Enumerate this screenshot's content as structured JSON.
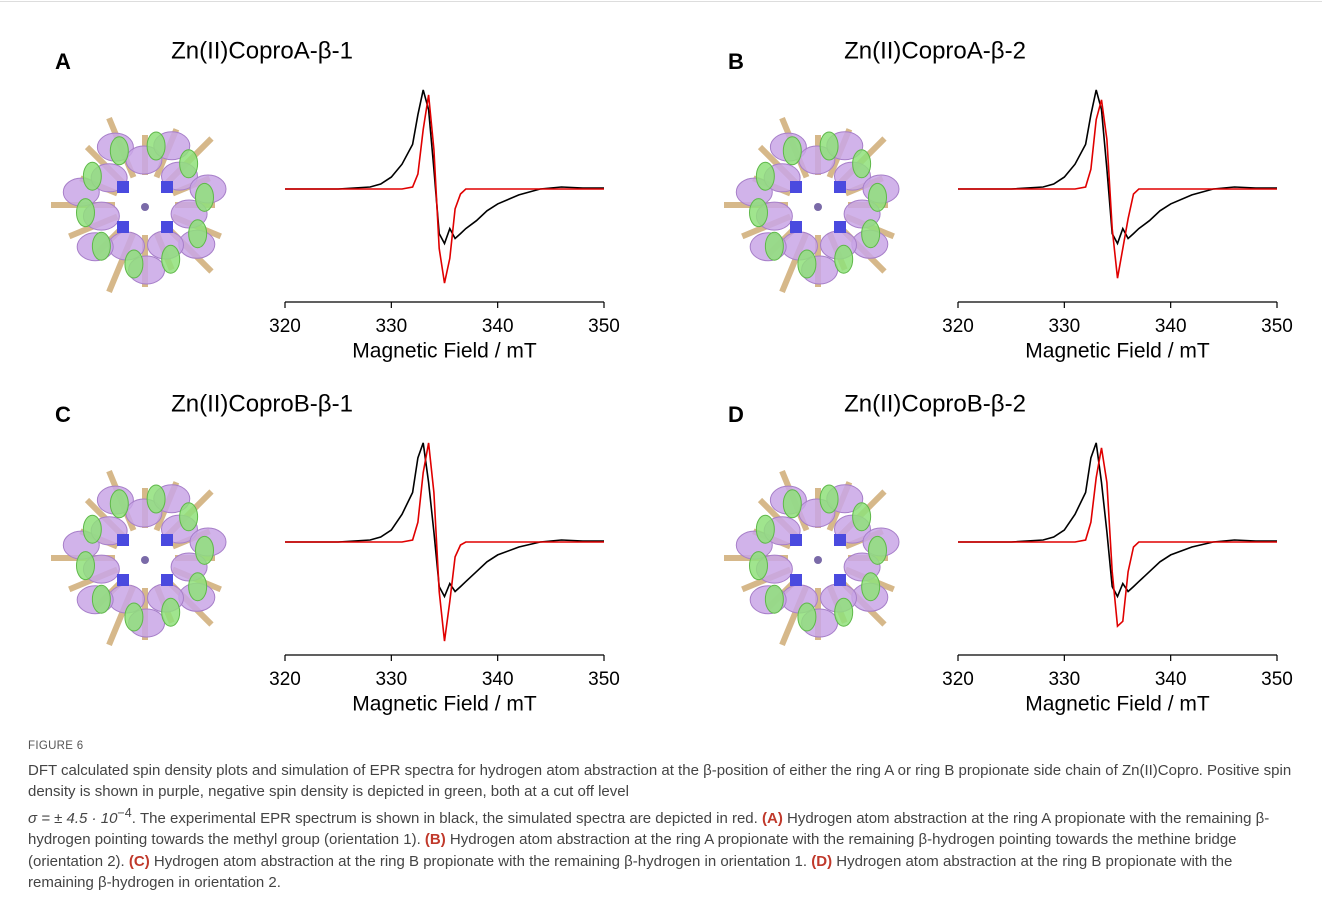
{
  "chart_data": [
    {
      "type": "line",
      "label": "A",
      "title": "Zn(II)CoproA-β-1",
      "xlabel": "Magnetic Field / mT",
      "xlim": [
        320,
        350
      ],
      "xticks": [
        320,
        330,
        340,
        350
      ],
      "ylim": [
        -1.1,
        1.1
      ],
      "x": [
        320,
        325,
        328,
        329,
        330,
        331,
        332,
        332.5,
        333,
        333.5,
        334,
        334.5,
        335,
        335.5,
        336,
        336.5,
        337,
        338,
        339,
        340,
        342,
        344,
        346,
        348,
        350
      ],
      "series": [
        {
          "color": "#000000",
          "values": [
            0,
            0,
            0.02,
            0.05,
            0.12,
            0.25,
            0.45,
            0.75,
            1.0,
            0.8,
            0.2,
            -0.45,
            -0.55,
            -0.4,
            -0.5,
            -0.45,
            -0.4,
            -0.32,
            -0.22,
            -0.15,
            -0.06,
            0.0,
            0.02,
            0.01,
            0.01
          ]
        },
        {
          "color": "#e00000",
          "values": [
            0,
            0,
            0,
            0,
            0,
            0,
            0.02,
            0.15,
            0.6,
            0.95,
            0.4,
            -0.6,
            -0.95,
            -0.7,
            -0.2,
            -0.05,
            0,
            0,
            0,
            0,
            0,
            0,
            0,
            0,
            0
          ]
        }
      ]
    },
    {
      "type": "line",
      "label": "B",
      "title": "Zn(II)CoproA-β-2",
      "xlabel": "Magnetic Field / mT",
      "xlim": [
        320,
        350
      ],
      "xticks": [
        320,
        330,
        340,
        350
      ],
      "ylim": [
        -1.1,
        1.1
      ],
      "x": [
        320,
        325,
        328,
        329,
        330,
        331,
        332,
        332.5,
        333,
        333.5,
        334,
        334.5,
        335,
        335.5,
        336,
        336.5,
        337,
        338,
        339,
        340,
        342,
        344,
        346,
        348,
        350
      ],
      "series": [
        {
          "color": "#000000",
          "values": [
            0,
            0,
            0.02,
            0.05,
            0.12,
            0.25,
            0.45,
            0.75,
            1.0,
            0.8,
            0.2,
            -0.45,
            -0.55,
            -0.4,
            -0.5,
            -0.45,
            -0.4,
            -0.32,
            -0.22,
            -0.15,
            -0.06,
            0.0,
            0.02,
            0.01,
            0.01
          ]
        },
        {
          "color": "#e00000",
          "values": [
            0,
            0,
            0,
            0,
            0,
            0,
            0.02,
            0.2,
            0.7,
            0.9,
            0.5,
            -0.4,
            -0.9,
            -0.6,
            -0.3,
            -0.05,
            0,
            0,
            0,
            0,
            0,
            0,
            0,
            0,
            0
          ]
        }
      ]
    },
    {
      "type": "line",
      "label": "C",
      "title": "Zn(II)CoproB-β-1",
      "xlabel": "Magnetic Field / mT",
      "xlim": [
        320,
        350
      ],
      "xticks": [
        320,
        330,
        340,
        350
      ],
      "ylim": [
        -1.1,
        1.1
      ],
      "x": [
        320,
        325,
        328,
        329,
        330,
        331,
        332,
        332.5,
        333,
        333.5,
        334,
        334.5,
        335,
        335.5,
        336,
        336.5,
        337,
        338,
        339,
        340,
        342,
        344,
        346,
        348,
        350
      ],
      "series": [
        {
          "color": "#000000",
          "values": [
            0,
            0,
            0.02,
            0.05,
            0.12,
            0.28,
            0.5,
            0.85,
            1.0,
            0.6,
            0.1,
            -0.45,
            -0.55,
            -0.42,
            -0.5,
            -0.45,
            -0.4,
            -0.3,
            -0.2,
            -0.13,
            -0.05,
            0.0,
            0.02,
            0.01,
            0.01
          ]
        },
        {
          "color": "#e00000",
          "values": [
            0,
            0,
            0,
            0,
            0,
            0,
            0.02,
            0.2,
            0.7,
            1.0,
            0.5,
            -0.5,
            -1.0,
            -0.6,
            -0.15,
            -0.03,
            0,
            0,
            0,
            0,
            0,
            0,
            0,
            0,
            0
          ]
        }
      ]
    },
    {
      "type": "line",
      "label": "D",
      "title": "Zn(II)CoproB-β-2",
      "xlabel": "Magnetic Field / mT",
      "xlim": [
        320,
        350
      ],
      "xticks": [
        320,
        330,
        340,
        350
      ],
      "ylim": [
        -1.1,
        1.1
      ],
      "x": [
        320,
        325,
        328,
        329,
        330,
        331,
        332,
        332.5,
        333,
        333.5,
        334,
        334.5,
        335,
        335.5,
        336,
        336.5,
        337,
        338,
        339,
        340,
        342,
        344,
        346,
        348,
        350
      ],
      "series": [
        {
          "color": "#000000",
          "values": [
            0,
            0,
            0.02,
            0.05,
            0.12,
            0.28,
            0.5,
            0.85,
            1.0,
            0.6,
            0.1,
            -0.45,
            -0.55,
            -0.42,
            -0.5,
            -0.45,
            -0.4,
            -0.3,
            -0.2,
            -0.13,
            -0.05,
            0.0,
            0.02,
            0.01,
            0.01
          ]
        },
        {
          "color": "#e00000",
          "values": [
            0,
            0,
            0,
            0,
            0,
            0,
            0.02,
            0.2,
            0.65,
            0.95,
            0.6,
            -0.3,
            -0.85,
            -0.8,
            -0.3,
            -0.05,
            0,
            0,
            0,
            0,
            0,
            0,
            0,
            0,
            0
          ]
        }
      ]
    }
  ],
  "caption": {
    "label": "FIGURE 6",
    "intro": "DFT calculated spin density plots and simulation of EPR spectra for hydrogen atom abstraction at the β-position of either the ring A or ring B propionate side chain of Zn(II)Copro. Positive spin density is shown in purple, negative spin density is depicted in green, both at a cut off level",
    "sigma": "σ = ± 4.5 · 10",
    "sigma_exponent": "−4",
    "intro_end": ". The experimental EPR spectrum is shown in black, the simulated spectra are depicted in red.",
    "items": [
      {
        "label": "(A)",
        "text": "Hydrogen atom abstraction at the ring A propionate with the remaining β-hydrogen pointing towards the methyl group (orientation 1)."
      },
      {
        "label": "(B)",
        "text": "Hydrogen atom abstraction at the ring A propionate with the remaining β-hydrogen pointing towards the methine bridge (orientation 2)."
      },
      {
        "label": "(C)",
        "text": "Hydrogen atom abstraction at the ring B propionate with the remaining β-hydrogen in orientation 1."
      },
      {
        "label": "(D)",
        "text": "Hydrogen atom abstraction at the ring B propionate with the remaining β-hydrogen in orientation 2."
      }
    ]
  }
}
